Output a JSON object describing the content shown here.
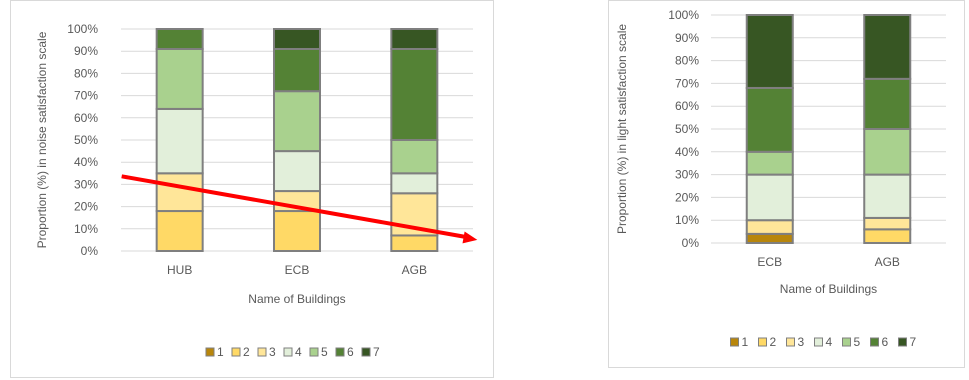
{
  "colors": {
    "1": "#b8860b",
    "2": "#ffd966",
    "3": "#ffe699",
    "4": "#e2efda",
    "5": "#a9d18e",
    "6": "#548235",
    "7": "#375623",
    "grid": "#d9d9d9",
    "bar_border": "#7f7f7f",
    "arrow": "#ff0000"
  },
  "chart_data": [
    {
      "type": "bar",
      "stacked": true,
      "percent": true,
      "xlabel": "Name of Buildings",
      "ylabel": "Proportion (%) in noise satisfaction scale",
      "ylim": [
        0,
        100
      ],
      "yticks": [
        "0%",
        "10%",
        "20%",
        "30%",
        "40%",
        "50%",
        "60%",
        "70%",
        "80%",
        "90%",
        "100%"
      ],
      "categories": [
        "HUB",
        "ECB",
        "AGB"
      ],
      "series": [
        {
          "name": "1",
          "values": [
            0,
            0,
            0
          ]
        },
        {
          "name": "2",
          "values": [
            18,
            18,
            7
          ]
        },
        {
          "name": "3",
          "values": [
            17,
            9,
            19
          ]
        },
        {
          "name": "4",
          "values": [
            29,
            18,
            9
          ]
        },
        {
          "name": "5",
          "values": [
            27,
            27,
            15
          ]
        },
        {
          "name": "6",
          "values": [
            9,
            19,
            41
          ]
        },
        {
          "name": "7",
          "values": [
            0,
            9,
            9
          ]
        }
      ],
      "legend": "bottom",
      "grid": true,
      "annotation": {
        "type": "arrow",
        "from": {
          "category": "HUB",
          "y": 35
        },
        "to": {
          "category": "AGB",
          "y": 5
        }
      }
    },
    {
      "type": "bar",
      "stacked": true,
      "percent": true,
      "xlabel": "Name of Buildings",
      "ylabel": "Proportion (%) in light satisfaction scale",
      "ylim": [
        0,
        100
      ],
      "yticks": [
        "0%",
        "10%",
        "20%",
        "30%",
        "40%",
        "50%",
        "60%",
        "70%",
        "80%",
        "90%",
        "100%"
      ],
      "categories": [
        "ECB",
        "AGB"
      ],
      "series": [
        {
          "name": "1",
          "values": [
            4,
            0
          ]
        },
        {
          "name": "2",
          "values": [
            0,
            6
          ]
        },
        {
          "name": "3",
          "values": [
            6,
            5
          ]
        },
        {
          "name": "4",
          "values": [
            20,
            19
          ]
        },
        {
          "name": "5",
          "values": [
            10,
            20
          ]
        },
        {
          "name": "6",
          "values": [
            28,
            22
          ]
        },
        {
          "name": "7",
          "values": [
            32,
            28
          ]
        }
      ],
      "legend": "bottom",
      "grid": true
    }
  ]
}
